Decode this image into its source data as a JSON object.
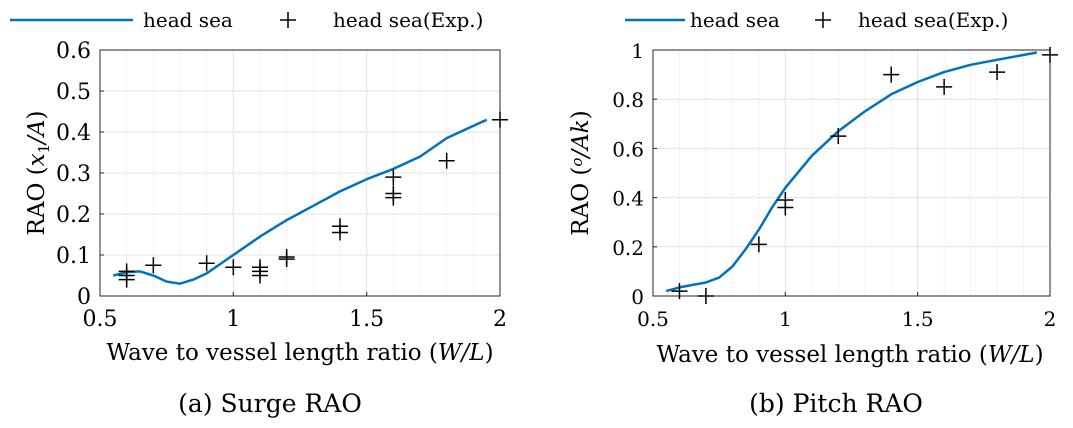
{
  "figure": {
    "subcaptions": [
      "(a) Surge RAO",
      "(b) Pitch RAO"
    ]
  },
  "chart_data": [
    {
      "type": "line",
      "caption": "(a) Surge RAO",
      "title": "",
      "xlabel": "Wave to vessel length ratio (W/L)",
      "ylabel": "RAO (x1/A)",
      "xlim": [
        0.5,
        2
      ],
      "ylim": [
        0,
        0.6
      ],
      "xticks": [
        0.5,
        1,
        1.5,
        2
      ],
      "xtick_labels": [
        "0.5",
        "1",
        "1.5",
        "2"
      ],
      "yticks": [
        0,
        0.1,
        0.2,
        0.3,
        0.4,
        0.5,
        0.6
      ],
      "ytick_labels": [
        "0",
        "0.1",
        "0.2",
        "0.3",
        "0.4",
        "0.5",
        "0.6"
      ],
      "grid": true,
      "legend_position": "top-outside",
      "series": [
        {
          "name": "head sea",
          "kind": "line",
          "color": "#0072BD",
          "x": [
            0.55,
            0.6,
            0.65,
            0.7,
            0.75,
            0.8,
            0.85,
            0.9,
            1.0,
            1.1,
            1.2,
            1.3,
            1.4,
            1.5,
            1.6,
            1.7,
            1.8,
            1.95
          ],
          "y": [
            0.05,
            0.058,
            0.06,
            0.05,
            0.035,
            0.03,
            0.04,
            0.055,
            0.1,
            0.145,
            0.185,
            0.22,
            0.255,
            0.285,
            0.31,
            0.34,
            0.385,
            0.43
          ]
        },
        {
          "name": "head sea(Exp.)",
          "kind": "marker",
          "marker": "+",
          "color": "#000000",
          "x": [
            0.6,
            0.6,
            0.6,
            0.7,
            0.9,
            1.0,
            1.1,
            1.1,
            1.1,
            1.2,
            1.2,
            1.4,
            1.4,
            1.6,
            1.6,
            1.6,
            1.8,
            2.0
          ],
          "y": [
            0.04,
            0.05,
            0.06,
            0.075,
            0.08,
            0.07,
            0.05,
            0.06,
            0.07,
            0.09,
            0.095,
            0.155,
            0.17,
            0.24,
            0.25,
            0.29,
            0.33,
            0.43
          ]
        }
      ]
    },
    {
      "type": "line",
      "caption": "(b) Pitch RAO",
      "title": "",
      "xlabel": "Wave to vessel length ratio (W/L)",
      "ylabel": "RAO (o/Ak)",
      "xlim": [
        0.5,
        2
      ],
      "ylim": [
        0,
        1
      ],
      "xticks": [
        0.5,
        1,
        1.5,
        2
      ],
      "xtick_labels": [
        "0.5",
        "1",
        "1.5",
        "2"
      ],
      "yticks": [
        0,
        0.2,
        0.4,
        0.6,
        0.8,
        1
      ],
      "ytick_labels": [
        "0",
        "0.2",
        "0.4",
        "0.6",
        "0.8",
        "1"
      ],
      "grid": true,
      "legend_position": "top-outside",
      "series": [
        {
          "name": "head sea",
          "kind": "line",
          "color": "#0072BD",
          "x": [
            0.55,
            0.6,
            0.65,
            0.7,
            0.75,
            0.8,
            0.85,
            0.9,
            0.95,
            1.0,
            1.1,
            1.2,
            1.3,
            1.4,
            1.5,
            1.6,
            1.7,
            1.8,
            1.95
          ],
          "y": [
            0.02,
            0.035,
            0.045,
            0.055,
            0.075,
            0.12,
            0.19,
            0.27,
            0.36,
            0.44,
            0.57,
            0.67,
            0.75,
            0.82,
            0.87,
            0.91,
            0.94,
            0.96,
            0.99
          ]
        },
        {
          "name": "head sea(Exp.)",
          "kind": "marker",
          "marker": "+",
          "color": "#000000",
          "x": [
            0.6,
            0.7,
            0.9,
            1.0,
            1.0,
            1.2,
            1.4,
            1.6,
            1.8,
            2.0
          ],
          "y": [
            0.02,
            0.0,
            0.21,
            0.36,
            0.39,
            0.65,
            0.9,
            0.85,
            0.91,
            0.98
          ]
        }
      ]
    }
  ]
}
